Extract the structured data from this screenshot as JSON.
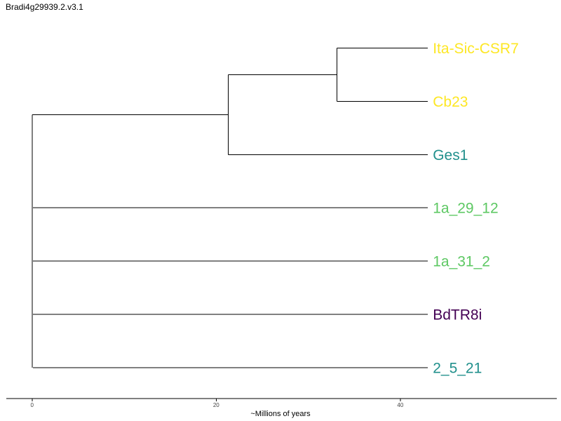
{
  "title": "Bradi4g29939.2.v3.1",
  "chart_data": {
    "type": "phylogenetic-tree",
    "xlabel": "~Millions of years",
    "x_ticks": [
      0,
      20,
      40
    ],
    "xlim": [
      -2.8,
      57
    ],
    "tips": [
      {
        "label": "Ita-Sic-CSR7",
        "color": "#FDE725"
      },
      {
        "label": "Cb23",
        "color": "#FDE725"
      },
      {
        "label": "Ges1",
        "color": "#21908C"
      },
      {
        "label": "1a_29_12",
        "color": "#5DC863"
      },
      {
        "label": "1a_31_2",
        "color": "#5DC863"
      },
      {
        "label": "BdTR8i",
        "color": "#440154"
      },
      {
        "label": "2_5_21",
        "color": "#21908C"
      }
    ],
    "tip_age": 43,
    "tree": {
      "x": 0,
      "children": [
        {
          "x": 21.3,
          "children": [
            {
              "x": 33.1,
              "children": [
                {
                  "tip": 0
                },
                {
                  "tip": 1
                }
              ]
            },
            {
              "tip": 2
            }
          ]
        },
        {
          "x": 0.1,
          "tip": 3
        },
        {
          "x": 0.1,
          "tip": 4
        },
        {
          "x": 0.1,
          "tip": 5
        },
        {
          "x": 0.1,
          "tip": 6
        }
      ]
    }
  }
}
